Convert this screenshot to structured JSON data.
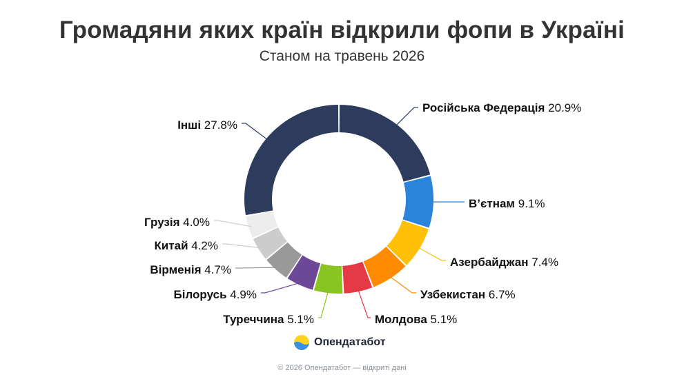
{
  "title": "Громадяни яких країн відкрили фопи в Україні",
  "subtitle": "Станом на травень 2026",
  "brand": {
    "name": "Опендатабот",
    "logo_icon": "sun-wave-logo-icon"
  },
  "footer": "© 2026 Опендатабот — відкриті дані",
  "chart_data": {
    "type": "pie",
    "donut": true,
    "unit": "%",
    "slices": [
      {
        "label": "Російська Федерація",
        "value": 20.9,
        "value_label": "20.9%",
        "color": "#2d3c5c"
      },
      {
        "label": "В’єтнам",
        "value": 9.1,
        "value_label": "9.1%",
        "color": "#2b84db"
      },
      {
        "label": "Азербайджан",
        "value": 7.4,
        "value_label": "7.4%",
        "color": "#ffc107"
      },
      {
        "label": "Узбекистан",
        "value": 6.7,
        "value_label": "6.7%",
        "color": "#ff8c00"
      },
      {
        "label": "Молдова",
        "value": 5.1,
        "value_label": "5.1%",
        "color": "#e53945"
      },
      {
        "label": "Туреччина",
        "value": 5.1,
        "value_label": "5.1%",
        "color": "#88c522"
      },
      {
        "label": "Білорусь",
        "value": 4.9,
        "value_label": "4.9%",
        "color": "#6c4896"
      },
      {
        "label": "Вірменія",
        "value": 4.7,
        "value_label": "4.7%",
        "color": "#999999"
      },
      {
        "label": "Китай",
        "value": 4.2,
        "value_label": "4.2%",
        "color": "#cccccc"
      },
      {
        "label": "Грузія",
        "value": 4.0,
        "value_label": "4.0%",
        "color": "#ececec"
      },
      {
        "label": "Інші",
        "value": 27.8,
        "value_label": "27.8%",
        "color": "#2d3c5c"
      }
    ]
  }
}
